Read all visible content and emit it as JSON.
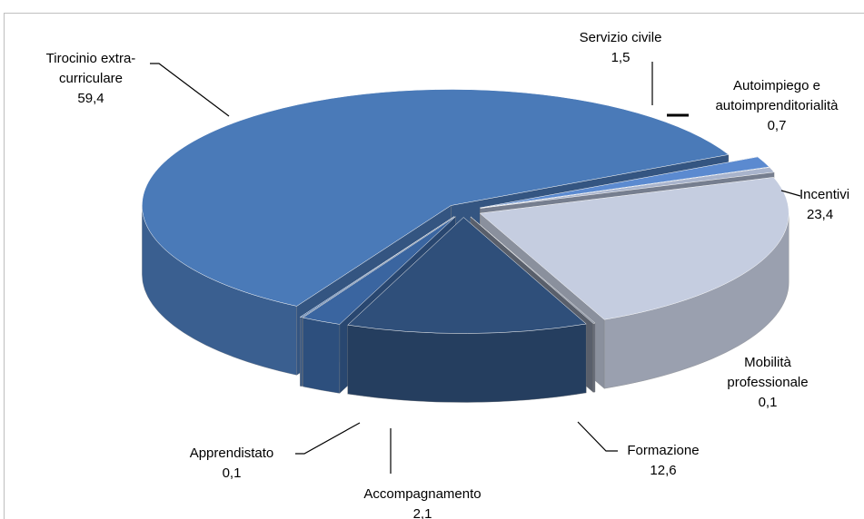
{
  "chart_data": {
    "type": "pie3d",
    "categories": [
      "Servizio civile",
      "Autoimpiego e autoimprenditorialità",
      "Incentivi",
      "Mobilità professionale",
      "Formazione",
      "Accompagnamento",
      "Apprendistato",
      "Tirocinio extra-curriculare"
    ],
    "values": [
      1.5,
      0.7,
      23.4,
      0.1,
      12.6,
      2.1,
      0.1,
      59.4
    ],
    "value_labels": [
      "1,5",
      "0,7",
      "23,4",
      "0,1",
      "12,6",
      "2,1",
      "0,1",
      "59,4"
    ],
    "colors": [
      "#5b8ad0",
      "#a9b4cc",
      "#c5cde0",
      "#7f8899",
      "#2f4f7a",
      "#3a65a0",
      "#4a74ad",
      "#4a7ab8"
    ]
  }
}
